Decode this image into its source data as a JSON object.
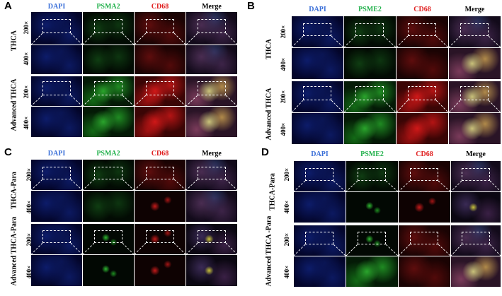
{
  "panels": [
    {
      "letter": "A",
      "channels": [
        "DAPI",
        "PSMA2",
        "CD68",
        "Merge"
      ],
      "groups": [
        "THCA",
        "Advanced THCA"
      ]
    },
    {
      "letter": "B",
      "channels": [
        "DAPI",
        "PSME2",
        "CD68",
        "Merge"
      ],
      "groups": [
        "THCA",
        "Advanced THCA"
      ]
    },
    {
      "letter": "C",
      "channels": [
        "DAPI",
        "PSMA2",
        "CD68",
        "Merge"
      ],
      "groups": [
        "THCA-Para",
        "Advanced THCA-Para"
      ]
    },
    {
      "letter": "D",
      "channels": [
        "DAPI",
        "PSME2",
        "CD68",
        "Merge"
      ],
      "groups": [
        "THCA-Para",
        "Advanced THCA -Para"
      ]
    }
  ],
  "magnifications": [
    "200×",
    "400×"
  ],
  "colors": {
    "DAPI": "#3a6fd8",
    "green": "#22b14c",
    "red": "#e02020",
    "merge": "#000000"
  }
}
